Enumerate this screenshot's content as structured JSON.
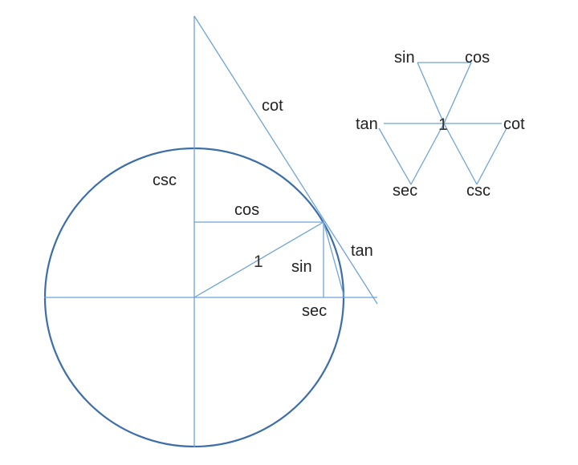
{
  "colors": {
    "circle": "#3d6ea8",
    "lines": "#6ea3d6",
    "text": "#222222",
    "background": "#ffffff"
  },
  "unit_circle": {
    "labels": {
      "cot": "cot",
      "csc": "csc",
      "cos": "cos",
      "tan": "tan",
      "radius": "1",
      "sin": "sin",
      "sec": "sec"
    }
  },
  "hexagram": {
    "labels": {
      "sin": "sin",
      "cos": "cos",
      "tan": "tan",
      "center": "1",
      "cot": "cot",
      "sec": "sec",
      "csc": "csc"
    }
  }
}
